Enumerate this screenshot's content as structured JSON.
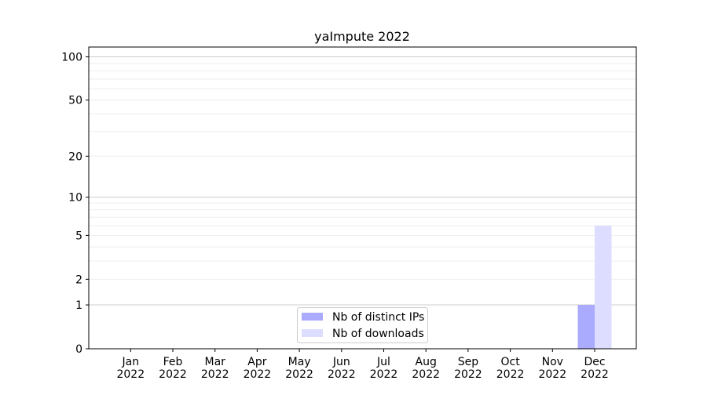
{
  "chart_data": {
    "type": "bar",
    "title": "yaImpute 2022",
    "xlabel": "",
    "ylabel": "",
    "y_scale": "log1p",
    "ylim": [
      0,
      117
    ],
    "grid": true,
    "legend_placement": "lower-center",
    "categories": [
      "Jan\n2022",
      "Feb\n2022",
      "Mar\n2022",
      "Apr\n2022",
      "May\n2022",
      "Jun\n2022",
      "Jul\n2022",
      "Aug\n2022",
      "Sep\n2022",
      "Oct\n2022",
      "Nov\n2022",
      "Dec\n2022"
    ],
    "y_ticks": [
      0,
      1,
      2,
      5,
      10,
      20,
      50,
      100
    ],
    "series": [
      {
        "name": "Nb of distinct IPs",
        "color": "#aaaaff",
        "values": [
          0,
          0,
          0,
          0,
          0,
          0,
          0,
          0,
          0,
          0,
          0,
          1
        ]
      },
      {
        "name": "Nb of downloads",
        "color": "#ddddff",
        "values": [
          0,
          0,
          0,
          0,
          0,
          0,
          0,
          0,
          0,
          0,
          0,
          6
        ]
      }
    ]
  }
}
